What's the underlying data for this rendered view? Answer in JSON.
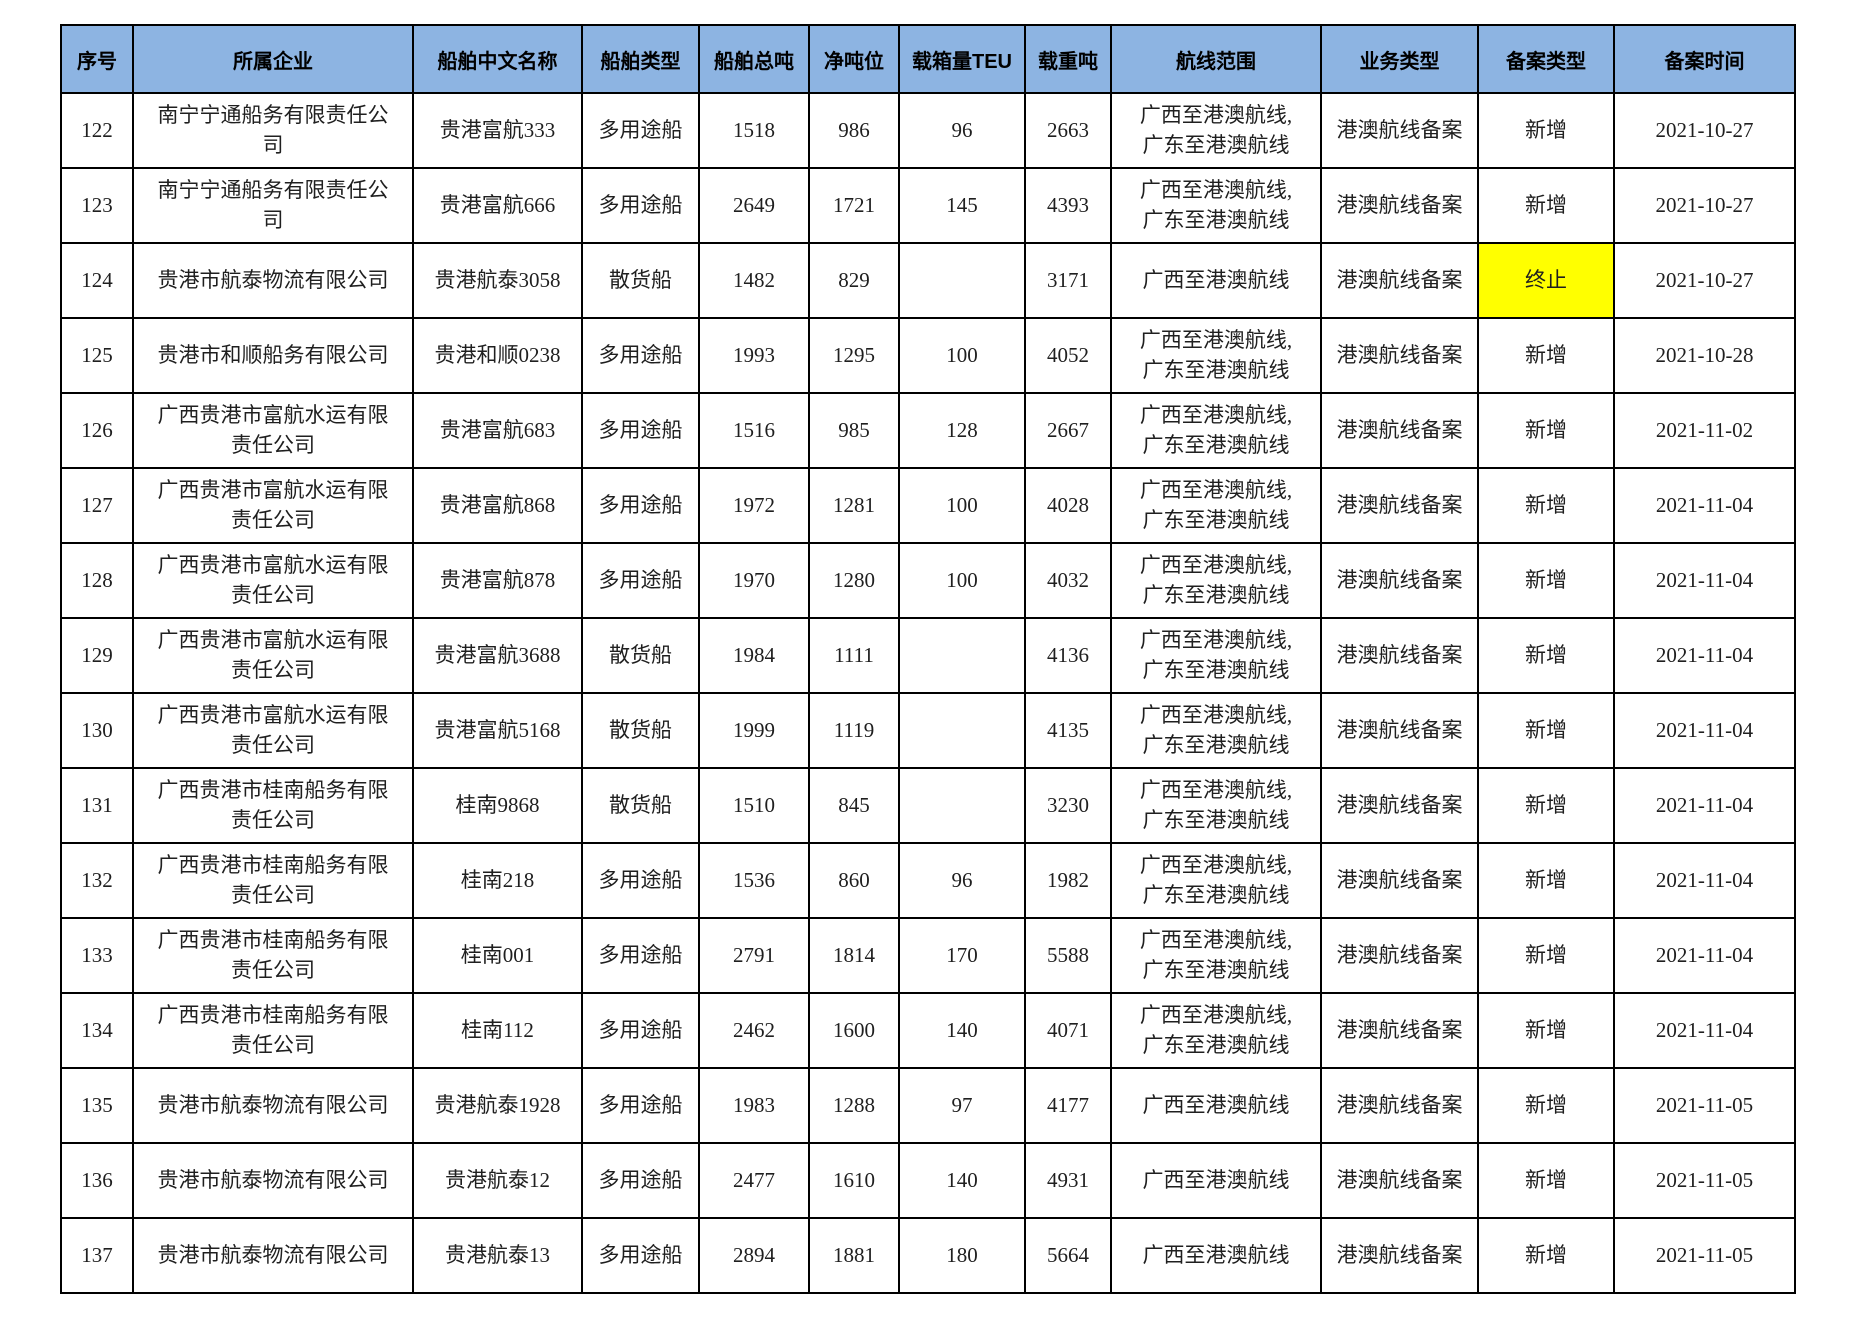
{
  "table": {
    "colors": {
      "header_bg": "#8db4e2",
      "border": "#000000",
      "text": "#1f1f1f",
      "highlight": "#ffff00"
    },
    "headers": [
      "序号",
      "所属企业",
      "船舶中文名称",
      "船舶类型",
      "船舶总吨",
      "净吨位",
      "载箱量TEU",
      "载重吨",
      "航线范围",
      "业务类型",
      "备案类型",
      "备案时间"
    ],
    "rows": [
      {
        "index": "122",
        "company": "南宁宁通船务有限责任公司",
        "ship_name": "贵港富航333",
        "ship_type": "多用途船",
        "gross_tonnage": "1518",
        "net_tonnage": "986",
        "teu": "96",
        "deadweight": "2663",
        "route": "广西至港澳航线,\n广东至港澳航线",
        "business_type": "港澳航线备案",
        "filing_type": "新增",
        "filing_type_highlight": false,
        "filing_date": "2021-10-27"
      },
      {
        "index": "123",
        "company": "南宁宁通船务有限责任公司",
        "ship_name": "贵港富航666",
        "ship_type": "多用途船",
        "gross_tonnage": "2649",
        "net_tonnage": "1721",
        "teu": "145",
        "deadweight": "4393",
        "route": "广西至港澳航线,\n广东至港澳航线",
        "business_type": "港澳航线备案",
        "filing_type": "新增",
        "filing_type_highlight": false,
        "filing_date": "2021-10-27"
      },
      {
        "index": "124",
        "company": "贵港市航泰物流有限公司",
        "ship_name": "贵港航泰3058",
        "ship_type": "散货船",
        "gross_tonnage": "1482",
        "net_tonnage": "829",
        "teu": "",
        "deadweight": "3171",
        "route": "广西至港澳航线",
        "business_type": "港澳航线备案",
        "filing_type": "终止",
        "filing_type_highlight": true,
        "filing_date": "2021-10-27"
      },
      {
        "index": "125",
        "company": "贵港市和顺船务有限公司",
        "ship_name": "贵港和顺0238",
        "ship_type": "多用途船",
        "gross_tonnage": "1993",
        "net_tonnage": "1295",
        "teu": "100",
        "deadweight": "4052",
        "route": "广西至港澳航线,\n广东至港澳航线",
        "business_type": "港澳航线备案",
        "filing_type": "新增",
        "filing_type_highlight": false,
        "filing_date": "2021-10-28"
      },
      {
        "index": "126",
        "company": "广西贵港市富航水运有限责任公司",
        "ship_name": "贵港富航683",
        "ship_type": "多用途船",
        "gross_tonnage": "1516",
        "net_tonnage": "985",
        "teu": "128",
        "deadweight": "2667",
        "route": "广西至港澳航线,\n广东至港澳航线",
        "business_type": "港澳航线备案",
        "filing_type": "新增",
        "filing_type_highlight": false,
        "filing_date": "2021-11-02"
      },
      {
        "index": "127",
        "company": "广西贵港市富航水运有限责任公司",
        "ship_name": "贵港富航868",
        "ship_type": "多用途船",
        "gross_tonnage": "1972",
        "net_tonnage": "1281",
        "teu": "100",
        "deadweight": "4028",
        "route": "广西至港澳航线,\n广东至港澳航线",
        "business_type": "港澳航线备案",
        "filing_type": "新增",
        "filing_type_highlight": false,
        "filing_date": "2021-11-04"
      },
      {
        "index": "128",
        "company": "广西贵港市富航水运有限责任公司",
        "ship_name": "贵港富航878",
        "ship_type": "多用途船",
        "gross_tonnage": "1970",
        "net_tonnage": "1280",
        "teu": "100",
        "deadweight": "4032",
        "route": "广西至港澳航线,\n广东至港澳航线",
        "business_type": "港澳航线备案",
        "filing_type": "新增",
        "filing_type_highlight": false,
        "filing_date": "2021-11-04"
      },
      {
        "index": "129",
        "company": "广西贵港市富航水运有限责任公司",
        "ship_name": "贵港富航3688",
        "ship_type": "散货船",
        "gross_tonnage": "1984",
        "net_tonnage": "1111",
        "teu": "",
        "deadweight": "4136",
        "route": "广西至港澳航线,\n广东至港澳航线",
        "business_type": "港澳航线备案",
        "filing_type": "新增",
        "filing_type_highlight": false,
        "filing_date": "2021-11-04"
      },
      {
        "index": "130",
        "company": "广西贵港市富航水运有限责任公司",
        "ship_name": "贵港富航5168",
        "ship_type": "散货船",
        "gross_tonnage": "1999",
        "net_tonnage": "1119",
        "teu": "",
        "deadweight": "4135",
        "route": "广西至港澳航线,\n广东至港澳航线",
        "business_type": "港澳航线备案",
        "filing_type": "新增",
        "filing_type_highlight": false,
        "filing_date": "2021-11-04"
      },
      {
        "index": "131",
        "company": "广西贵港市桂南船务有限责任公司",
        "ship_name": "桂南9868",
        "ship_type": "散货船",
        "gross_tonnage": "1510",
        "net_tonnage": "845",
        "teu": "",
        "deadweight": "3230",
        "route": "广西至港澳航线,\n广东至港澳航线",
        "business_type": "港澳航线备案",
        "filing_type": "新增",
        "filing_type_highlight": false,
        "filing_date": "2021-11-04"
      },
      {
        "index": "132",
        "company": "广西贵港市桂南船务有限责任公司",
        "ship_name": "桂南218",
        "ship_type": "多用途船",
        "gross_tonnage": "1536",
        "net_tonnage": "860",
        "teu": "96",
        "deadweight": "1982",
        "route": "广西至港澳航线,\n广东至港澳航线",
        "business_type": "港澳航线备案",
        "filing_type": "新增",
        "filing_type_highlight": false,
        "filing_date": "2021-11-04"
      },
      {
        "index": "133",
        "company": "广西贵港市桂南船务有限责任公司",
        "ship_name": "桂南001",
        "ship_type": "多用途船",
        "gross_tonnage": "2791",
        "net_tonnage": "1814",
        "teu": "170",
        "deadweight": "5588",
        "route": "广西至港澳航线,\n广东至港澳航线",
        "business_type": "港澳航线备案",
        "filing_type": "新增",
        "filing_type_highlight": false,
        "filing_date": "2021-11-04"
      },
      {
        "index": "134",
        "company": "广西贵港市桂南船务有限责任公司",
        "ship_name": "桂南112",
        "ship_type": "多用途船",
        "gross_tonnage": "2462",
        "net_tonnage": "1600",
        "teu": "140",
        "deadweight": "4071",
        "route": "广西至港澳航线,\n广东至港澳航线",
        "business_type": "港澳航线备案",
        "filing_type": "新增",
        "filing_type_highlight": false,
        "filing_date": "2021-11-04"
      },
      {
        "index": "135",
        "company": "贵港市航泰物流有限公司",
        "ship_name": "贵港航泰1928",
        "ship_type": "多用途船",
        "gross_tonnage": "1983",
        "net_tonnage": "1288",
        "teu": "97",
        "deadweight": "4177",
        "route": "广西至港澳航线",
        "business_type": "港澳航线备案",
        "filing_type": "新增",
        "filing_type_highlight": false,
        "filing_date": "2021-11-05"
      },
      {
        "index": "136",
        "company": "贵港市航泰物流有限公司",
        "ship_name": "贵港航泰12",
        "ship_type": "多用途船",
        "gross_tonnage": "2477",
        "net_tonnage": "1610",
        "teu": "140",
        "deadweight": "4931",
        "route": "广西至港澳航线",
        "business_type": "港澳航线备案",
        "filing_type": "新增",
        "filing_type_highlight": false,
        "filing_date": "2021-11-05"
      },
      {
        "index": "137",
        "company": "贵港市航泰物流有限公司",
        "ship_name": "贵港航泰13",
        "ship_type": "多用途船",
        "gross_tonnage": "2894",
        "net_tonnage": "1881",
        "teu": "180",
        "deadweight": "5664",
        "route": "广西至港澳航线",
        "business_type": "港澳航线备案",
        "filing_type": "新增",
        "filing_type_highlight": false,
        "filing_date": "2021-11-05"
      }
    ]
  }
}
